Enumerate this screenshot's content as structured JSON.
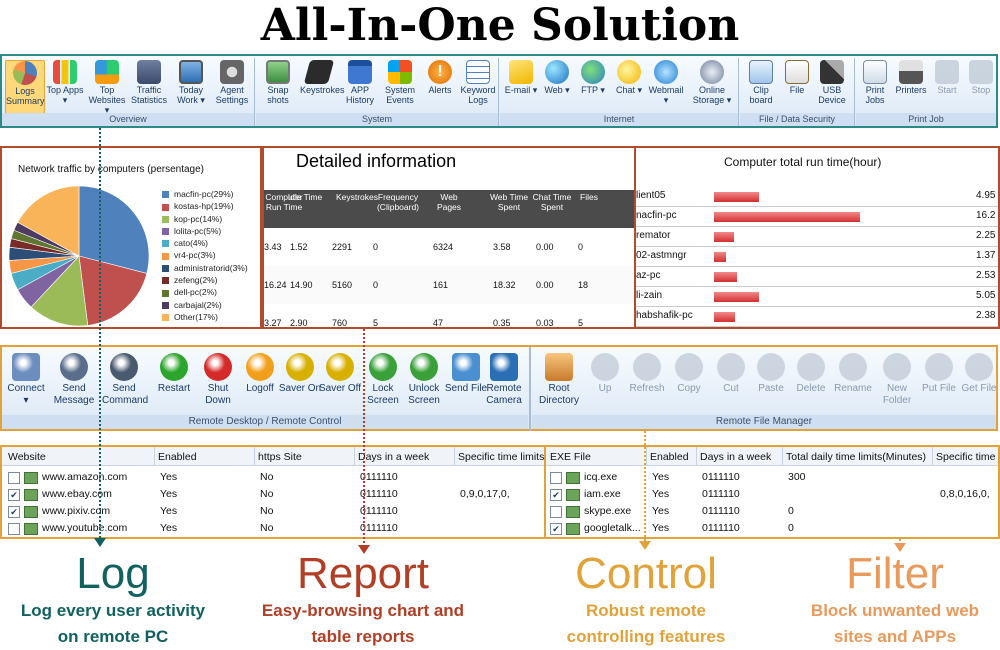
{
  "title": "All-In-One Solution",
  "ribbon_top": {
    "groups": [
      {
        "caption": "Overview",
        "items": [
          "Logs Summary",
          "Top Apps ▾",
          "Top Websites ▾",
          "Traffic Statistics",
          "Today Work ▾",
          "Agent Settings"
        ]
      },
      {
        "caption": "System",
        "items": [
          "Snap shots",
          "Keystrokes",
          "APP History",
          "System Events",
          "Alerts",
          "Keyword Logs"
        ]
      },
      {
        "caption": "Internet",
        "items": [
          "E-mail ▾",
          "Web ▾",
          "FTP ▾",
          "Chat ▾",
          "Webmail ▾",
          "Online Storage ▾"
        ]
      },
      {
        "caption": "File / Data Security",
        "items": [
          "Clip board",
          "File",
          "USB Device"
        ]
      },
      {
        "caption": "Print Job",
        "items": [
          "Print Jobs",
          "Printers",
          "Start",
          "Stop"
        ]
      }
    ]
  },
  "pie": {
    "title": "Network traffic by computers (persentage)",
    "legend": [
      "macfin-pc(29%)",
      "kostas-hp(19%)",
      "kop-pc(14%)",
      "lolita-pc(5%)",
      "cato(4%)",
      "vr4-pc(3%)",
      "administratorid(3%)",
      "zefeng(2%)",
      "dell-pc(2%)",
      "carbajal(2%)",
      "Other(17%)"
    ],
    "colors": [
      "#4f81bd",
      "#c0504d",
      "#9bbb59",
      "#8064a2",
      "#4bacc6",
      "#f79646",
      "#2c4d75",
      "#772c2a",
      "#5f7530",
      "#4d3b62",
      "#f9b45a"
    ]
  },
  "detail": {
    "title": "Detailed information",
    "headers": [
      "Computer Run Time",
      "Idle Time",
      "Keystrokes",
      "Frequency (Clipboard)",
      "Web Pages",
      "Web Time Spent",
      "Chat Time Spent",
      "Files"
    ],
    "rows": [
      [
        "3.43",
        "1.52",
        "2291",
        "0",
        "6324",
        "3.58",
        "0.00",
        "0"
      ],
      [
        "16.24",
        "14.90",
        "5160",
        "0",
        "161",
        "18.32",
        "0.00",
        "18"
      ],
      [
        "3.27",
        "2.90",
        "760",
        "5",
        "47",
        "0.35",
        "0.03",
        "5"
      ]
    ]
  },
  "runtime": {
    "title": "Computer total run time(hour)",
    "rows": [
      {
        "name": "lient05",
        "value": "4.95"
      },
      {
        "name": "nacfin-pc",
        "value": "16.2"
      },
      {
        "name": "remator",
        "value": "2.25"
      },
      {
        "name": "02-astmngr",
        "value": "1.37"
      },
      {
        "name": "az-pc",
        "value": "2.53"
      },
      {
        "name": "li-zain",
        "value": "5.05"
      },
      {
        "name": "habshafik-pc",
        "value": "2.38"
      }
    ],
    "bar_values": [
      4.95,
      16.2,
      2.25,
      1.37,
      2.53,
      5.05,
      2.38
    ]
  },
  "ribbon_bottom": {
    "left_caption": "Remote Desktop / Remote Control",
    "right_caption": "Remote File Manager",
    "left_items": [
      "Connect ▾",
      "Send Message",
      "Send Command",
      "Restart",
      "Shut Down",
      "Logoff",
      "Saver On",
      "Saver Off",
      "Lock Screen",
      "Unlock Screen",
      "Send File",
      "Remote Camera"
    ],
    "right_items": [
      "Root Directory",
      "Up",
      "Refresh",
      "Copy",
      "Cut",
      "Paste",
      "Delete",
      "Rename",
      "New Folder",
      "Put File",
      "Get File"
    ]
  },
  "website_grid": {
    "headers": [
      "Website",
      "Enabled",
      "https Site",
      "Days in a week",
      "Specific time limits"
    ],
    "rows": [
      {
        "checked": false,
        "site": "www.amazon.com",
        "enabled": "Yes",
        "https": "No",
        "days": "0111110",
        "limits": ""
      },
      {
        "checked": true,
        "site": "www.ebay.com",
        "enabled": "Yes",
        "https": "No",
        "days": "0111110",
        "limits": "0,9,0,17,0,"
      },
      {
        "checked": true,
        "site": "www.pixiv.com",
        "enabled": "Yes",
        "https": "No",
        "days": "0111110",
        "limits": ""
      },
      {
        "checked": false,
        "site": "www.youtube.com",
        "enabled": "Yes",
        "https": "No",
        "days": "0111110",
        "limits": ""
      }
    ]
  },
  "exe_grid": {
    "headers": [
      "EXE File",
      "Enabled",
      "Days in a week",
      "Total daily time limits(Minutes)",
      "Specific time"
    ],
    "rows": [
      {
        "checked": false,
        "file": "icq.exe",
        "enabled": "Yes",
        "days": "0111110",
        "total": "300",
        "specific": ""
      },
      {
        "checked": true,
        "file": "iam.exe",
        "enabled": "Yes",
        "days": "0111110",
        "total": "",
        "specific": "0,8,0,16,0,"
      },
      {
        "checked": false,
        "file": "skype.exe",
        "enabled": "Yes",
        "days": "0111110",
        "total": "0",
        "specific": ""
      },
      {
        "checked": true,
        "file": "googletalk...",
        "enabled": "Yes",
        "days": "0111110",
        "total": "0",
        "specific": ""
      }
    ]
  },
  "features": [
    {
      "word": "Log",
      "line1": "Log every user activity",
      "line2": "on remote PC",
      "color": "#11615f"
    },
    {
      "word": "Report",
      "line1": "Easy-browsing chart and",
      "line2": "table reports",
      "color": "#b03f25"
    },
    {
      "word": "Control",
      "line1": "Robust remote",
      "line2": "controlling features",
      "color": "#e2a23a"
    },
    {
      "word": "Filter",
      "line1": "Block unwanted web",
      "line2": "sites and APPs",
      "color": "#e79a5c"
    }
  ]
}
